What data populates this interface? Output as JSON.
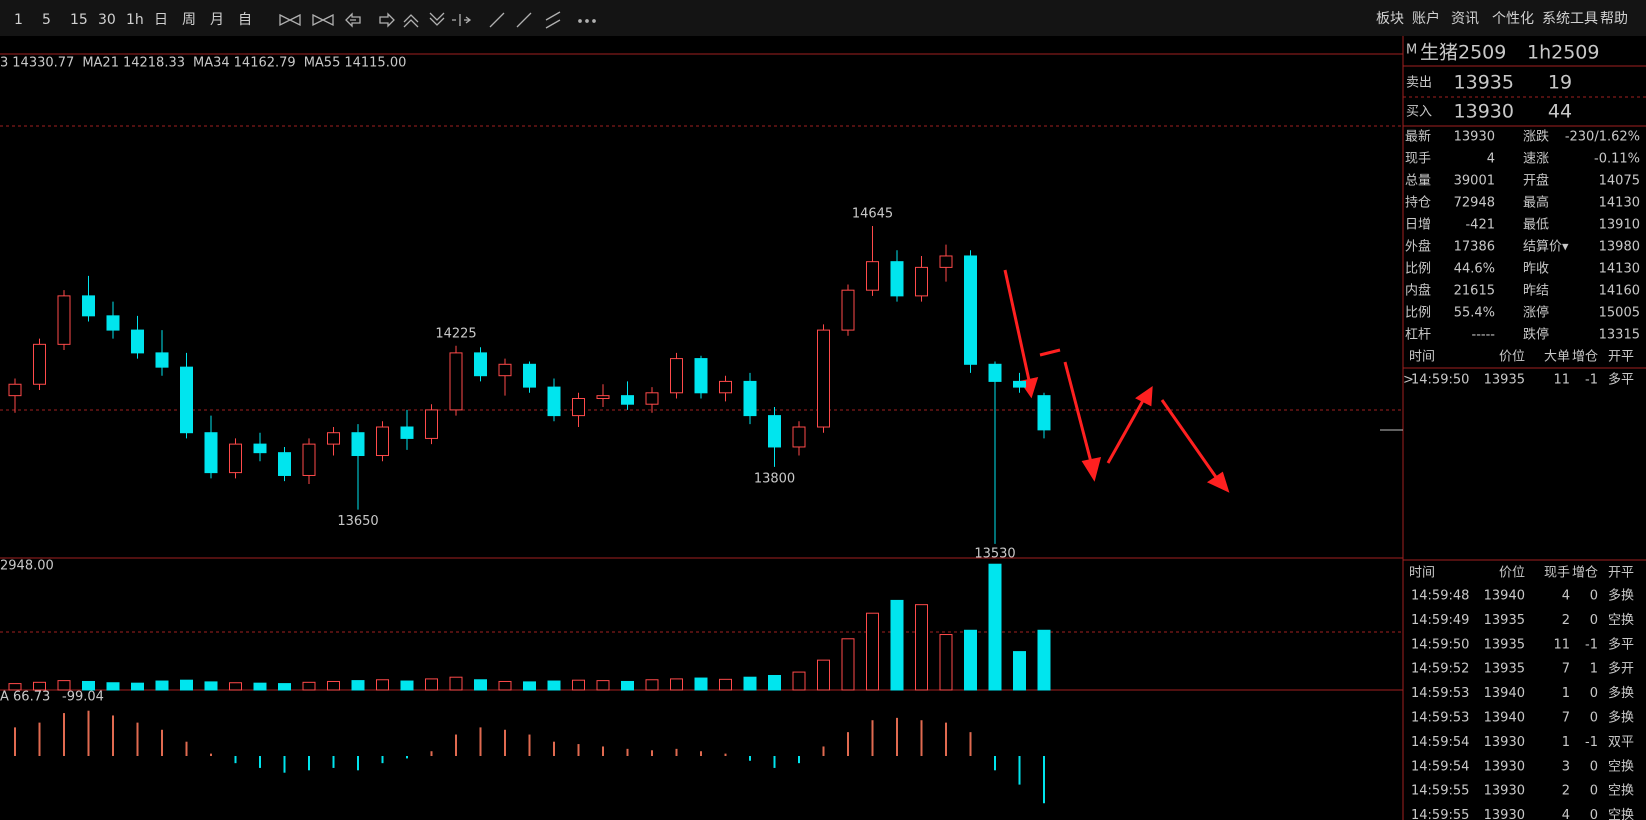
{
  "toolbar": {
    "periods": [
      "1",
      "5",
      "15",
      "30",
      "1h",
      "日",
      "周",
      "月",
      "自"
    ],
    "menu": [
      "板块",
      "账户",
      "资讯",
      "个性化",
      "系统工具",
      "帮助"
    ]
  },
  "chart_data": [
    {
      "type": "candlestick",
      "ylim": [
        13484,
        15245
      ],
      "ma_legend": [
        {
          "name": "3",
          "value": "14330.77",
          "color": "#e8e8e8"
        },
        {
          "name": "MA21",
          "value": "14218.33",
          "color": "#e040e0"
        },
        {
          "name": "MA34",
          "value": "14162.79",
          "color": "#40d040"
        },
        {
          "name": "MA55",
          "value": "14115.00",
          "color": "#909090"
        }
      ],
      "up_color": "#ff4a4a",
      "down_color": "#00e5ee",
      "candles": [
        [
          14050,
          14110,
          13990,
          14090
        ],
        [
          14090,
          14250,
          14070,
          14230
        ],
        [
          14230,
          14420,
          14210,
          14400
        ],
        [
          14400,
          14470,
          14310,
          14330
        ],
        [
          14330,
          14380,
          14250,
          14280
        ],
        [
          14280,
          14330,
          14180,
          14200
        ],
        [
          14200,
          14280,
          14120,
          14150
        ],
        [
          14150,
          14200,
          13900,
          13920
        ],
        [
          13920,
          13980,
          13760,
          13780
        ],
        [
          13780,
          13900,
          13760,
          13880
        ],
        [
          13880,
          13920,
          13820,
          13850
        ],
        [
          13850,
          13870,
          13750,
          13770
        ],
        [
          13770,
          13900,
          13740,
          13880
        ],
        [
          13880,
          13940,
          13840,
          13920
        ],
        [
          13920,
          13950,
          13650,
          13840
        ],
        [
          13840,
          13960,
          13820,
          13940
        ],
        [
          13940,
          14000,
          13860,
          13900
        ],
        [
          13900,
          14020,
          13880,
          14000
        ],
        [
          14000,
          14225,
          13980,
          14200
        ],
        [
          14200,
          14220,
          14100,
          14120
        ],
        [
          14120,
          14180,
          14050,
          14160
        ],
        [
          14160,
          14170,
          14060,
          14080
        ],
        [
          14080,
          14110,
          13960,
          13980
        ],
        [
          13980,
          14060,
          13940,
          14040
        ],
        [
          14040,
          14090,
          14010,
          14050
        ],
        [
          14050,
          14100,
          14000,
          14020
        ],
        [
          14020,
          14080,
          13990,
          14060
        ],
        [
          14060,
          14200,
          14040,
          14180
        ],
        [
          14180,
          14190,
          14040,
          14060
        ],
        [
          14060,
          14120,
          14030,
          14100
        ],
        [
          14100,
          14130,
          13950,
          13980
        ],
        [
          13980,
          14010,
          13800,
          13870
        ],
        [
          13870,
          13960,
          13840,
          13940
        ],
        [
          13940,
          14300,
          13920,
          14280
        ],
        [
          14280,
          14440,
          14260,
          14420
        ],
        [
          14420,
          14645,
          14400,
          14520
        ],
        [
          14520,
          14560,
          14380,
          14400
        ],
        [
          14400,
          14540,
          14380,
          14500
        ],
        [
          14500,
          14580,
          14450,
          14540
        ],
        [
          14540,
          14560,
          14130,
          14160
        ],
        [
          14160,
          14170,
          13530,
          14100
        ],
        [
          14100,
          14130,
          14060,
          14080
        ],
        [
          14050,
          14060,
          13900,
          13930
        ]
      ]
    },
    {
      "type": "bar",
      "legend": "2948.00",
      "ylim": [
        0,
        3000
      ],
      "values": [
        150,
        180,
        220,
        200,
        170,
        160,
        210,
        230,
        190,
        170,
        160,
        150,
        180,
        200,
        220,
        240,
        210,
        260,
        300,
        240,
        200,
        190,
        210,
        230,
        220,
        200,
        240,
        260,
        280,
        250,
        300,
        340,
        420,
        700,
        1200,
        1800,
        2100,
        2000,
        1300,
        1400,
        2948,
        900,
        1400
      ]
    },
    {
      "type": "macd",
      "legend": [
        "A 66.73",
        "-99.04"
      ],
      "ylim": [
        -130,
        130
      ],
      "up_color": "#e06a50",
      "down_color": "#00e5ee",
      "values": [
        60,
        70,
        90,
        95,
        85,
        70,
        55,
        30,
        5,
        -15,
        -25,
        -35,
        -30,
        -25,
        -30,
        -15,
        -5,
        10,
        45,
        60,
        55,
        45,
        30,
        25,
        20,
        15,
        12,
        15,
        10,
        5,
        -10,
        -25,
        -15,
        20,
        50,
        75,
        80,
        75,
        70,
        50,
        -30,
        -60,
        -99.04
      ]
    }
  ],
  "quote": {
    "badge": "M",
    "name": "生猪2509",
    "code": "1h2509",
    "sell": {
      "label": "卖出",
      "price": 13935,
      "volume": 19
    },
    "buy": {
      "label": "买入",
      "price": 13930,
      "volume": 44
    },
    "stats": [
      {
        "l1": "最新",
        "v1": "13930",
        "c1": "#30e030",
        "l2": "涨跌",
        "v2": "-230/1.62%",
        "c2": "#30e030"
      },
      {
        "l1": "现手",
        "v1": "4",
        "c1": "#f0e040",
        "l2": "速涨",
        "v2": "-0.11%",
        "c2": "#30e030"
      },
      {
        "l1": "总量",
        "v1": "39001",
        "c1": "#f0e040",
        "l2": "开盘",
        "v2": "14075",
        "c2": "#30e030"
      },
      {
        "l1": "持仓",
        "v1": "72948",
        "c1": "#f0e040",
        "l2": "最高",
        "v2": "14130",
        "c2": "#30e030"
      },
      {
        "l1": "日增",
        "v1": "-421",
        "c1": "#f0e040",
        "l2": "最低",
        "v2": "13910",
        "c2": "#30e030"
      },
      {
        "l1": "外盘",
        "v1": "17386",
        "c1": "#f0e040",
        "l2": "结算价▾",
        "v2": "13980",
        "c2": "#30e030"
      },
      {
        "l1": "比例",
        "v1": "44.6%",
        "c1": "#f0e040",
        "l2": "昨收",
        "v2": "14130",
        "c2": "#ffffff"
      },
      {
        "l1": "内盘",
        "v1": "21615",
        "c1": "#f0e040",
        "l2": "昨结",
        "v2": "14160",
        "c2": "#ffffff"
      },
      {
        "l1": "比例",
        "v1": "55.4%",
        "c1": "#f0e040",
        "l2": "涨停",
        "v2": "15005",
        "c2": "#ff4040"
      },
      {
        "l1": "杠杆",
        "v1": "-----",
        "c1": "#f0e040",
        "l2": "跌停",
        "v2": "13315",
        "c2": "#30e030"
      }
    ]
  },
  "big_orders": {
    "header": [
      "时间",
      "价位",
      "大单",
      "增仓",
      "开平"
    ],
    "rows": [
      {
        "marker": ">",
        "cells": [
          "14:59:50",
          13935,
          11,
          -1,
          "多平"
        ]
      }
    ]
  },
  "ticks": {
    "header": [
      "时间",
      "价位",
      "现手",
      "增仓",
      "开平"
    ],
    "rows": [
      {
        "cells": [
          "14:59:48",
          13940,
          4,
          0,
          "多换"
        ],
        "color": "#ff4040"
      },
      {
        "cells": [
          "14:59:49",
          13935,
          2,
          0,
          "空换"
        ],
        "color": "#30e030"
      },
      {
        "cells": [
          "14:59:50",
          13935,
          11,
          -1,
          "多平"
        ],
        "color": "#30e030"
      },
      {
        "cells": [
          "14:59:52",
          13935,
          7,
          1,
          "多开"
        ],
        "color": "#ff4040"
      },
      {
        "cells": [
          "14:59:53",
          13940,
          1,
          0,
          "多换"
        ],
        "color": "#ff4040"
      },
      {
        "cells": [
          "14:59:53",
          13940,
          7,
          0,
          "多换"
        ],
        "color": "#ff4040"
      },
      {
        "cells": [
          "14:59:54",
          13930,
          1,
          -1,
          "双平"
        ],
        "color": "#30e030"
      },
      {
        "cells": [
          "14:59:54",
          13930,
          3,
          0,
          "空换"
        ],
        "color": "#30e030"
      },
      {
        "cells": [
          "14:59:55",
          13930,
          2,
          0,
          "空换"
        ],
        "color": "#30e030"
      },
      {
        "cells": [
          "14:59:55",
          13930,
          4,
          0,
          "空换"
        ],
        "color": "#30e030"
      }
    ]
  }
}
